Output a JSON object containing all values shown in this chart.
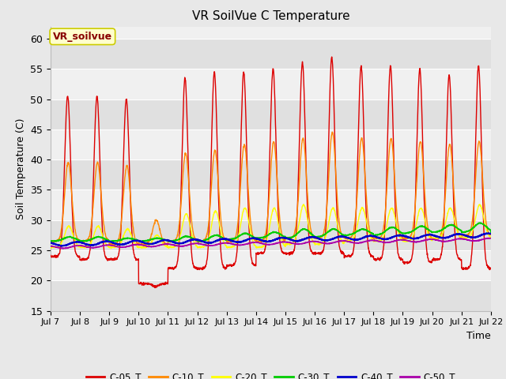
{
  "title": "VR SoilVue C Temperature",
  "ylabel": "Soil Temperature (C)",
  "xlabel": "Time",
  "annotation": "VR_soilvue",
  "ylim": [
    15,
    62
  ],
  "yticks": [
    15,
    20,
    25,
    30,
    35,
    40,
    45,
    50,
    55,
    60
  ],
  "x_labels": [
    "Jul 7",
    "Jul 8",
    "Jul 9",
    "Jul 10",
    "Jul 11",
    "Jul 12",
    "Jul 13",
    "Jul 14",
    "Jul 15",
    "Jul 16",
    "Jul 17",
    "Jul 18",
    "Jul 19",
    "Jul 20",
    "Jul 21",
    "Jul 22"
  ],
  "n_days": 15,
  "colors": {
    "C05": "#dd0000",
    "C10": "#ff8800",
    "C20": "#ffff00",
    "C30": "#00cc00",
    "C40": "#0000cc",
    "C50": "#aa00aa"
  },
  "legend_labels": [
    "C-05_T",
    "C-10_T",
    "C-20_T",
    "C-30_T",
    "C-40_T",
    "C-50_T"
  ],
  "fig_bg": "#e8e8e8",
  "plot_bg_light": "#f0f0f0",
  "plot_bg_dark": "#e0e0e0",
  "annotation_bg": "#ffffcc",
  "annotation_text_color": "#880000",
  "annotation_edge": "#cccc00"
}
